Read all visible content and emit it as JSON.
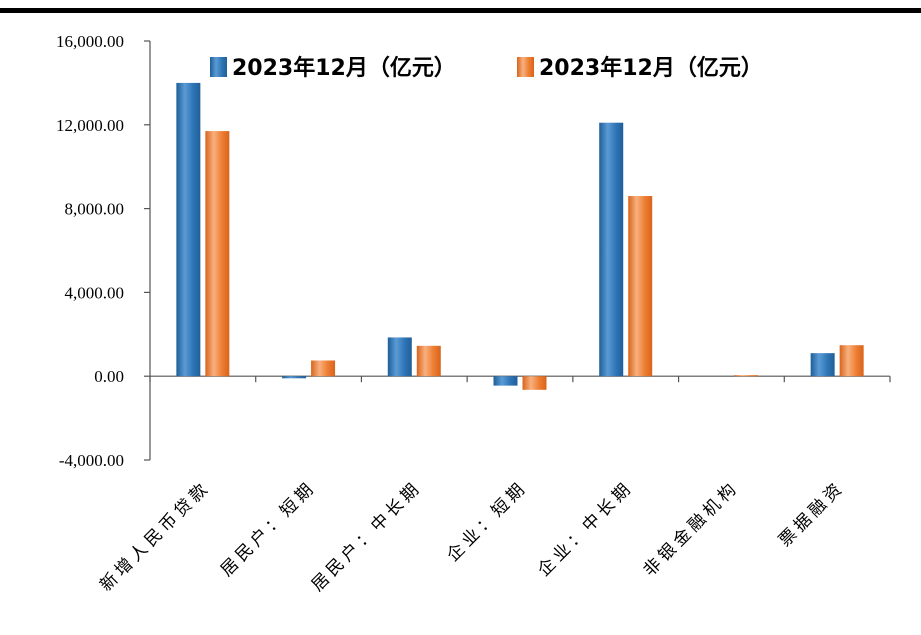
{
  "chart_data": {
    "type": "bar",
    "title": "",
    "xlabel": "",
    "ylabel": "",
    "categories": [
      "新增人民币贷款",
      "居民户：短期",
      "居民户：中长期",
      "企业：短期",
      "企业：中长期",
      "非银金融机构",
      "票据融资"
    ],
    "series": [
      {
        "name": "2023年12月（亿元）",
        "color": "#2e75b6",
        "values": [
          14000,
          -100,
          1850,
          -450,
          12100,
          0,
          1100
        ]
      },
      {
        "name": "2023年12月（亿元）",
        "color": "#ed7d31",
        "values": [
          11700,
          750,
          1450,
          -650,
          8600,
          50,
          1480
        ]
      }
    ],
    "ylim": [
      -4000,
      16000
    ],
    "yticks": [
      -4000,
      0,
      4000,
      8000,
      12000,
      16000
    ],
    "ytick_labels": [
      "-4,000.00",
      "0.00",
      "4,000.00",
      "8,000.00",
      "12,000.00",
      "16,000.00"
    ],
    "legend_position": "top",
    "grid": false
  }
}
